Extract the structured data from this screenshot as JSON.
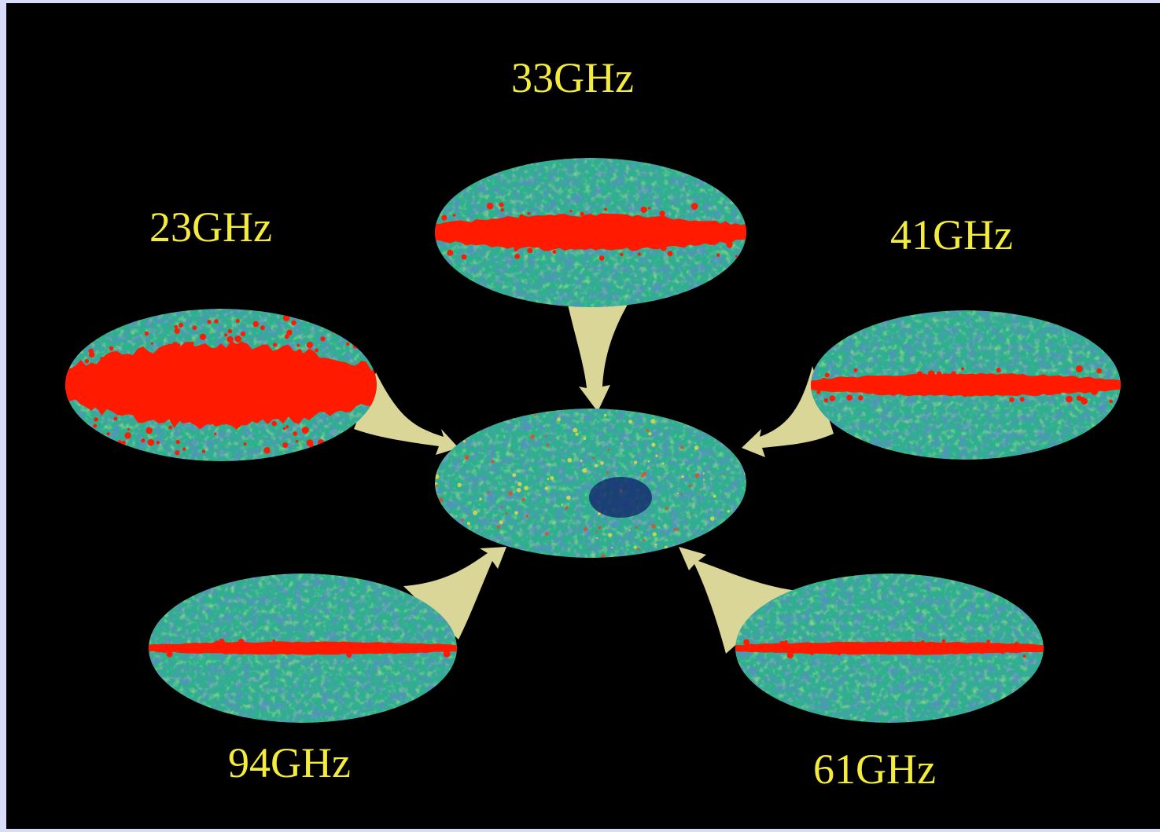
{
  "maps": [
    {
      "id": "33",
      "label": "33GHz",
      "galactic_plane": "wide"
    },
    {
      "id": "23",
      "label": "23GHz",
      "galactic_plane": "very-wide"
    },
    {
      "id": "41",
      "label": "41GHz",
      "galactic_plane": "medium"
    },
    {
      "id": "94",
      "label": "94GHz",
      "galactic_plane": "thin"
    },
    {
      "id": "61",
      "label": "61GHz",
      "galactic_plane": "thin"
    },
    {
      "id": "combined",
      "label": "",
      "galactic_plane": "none"
    }
  ],
  "colors": {
    "background": "#000000",
    "frame": "#d8dcf8",
    "label": "#f4ec3c",
    "arrow": "#ece8a4",
    "map_base": "#2eb08e",
    "map_blue": "#1e3c96",
    "map_green": "#6cd24a",
    "map_yellow": "#e8e040",
    "galaxy": "#ff1a00"
  }
}
